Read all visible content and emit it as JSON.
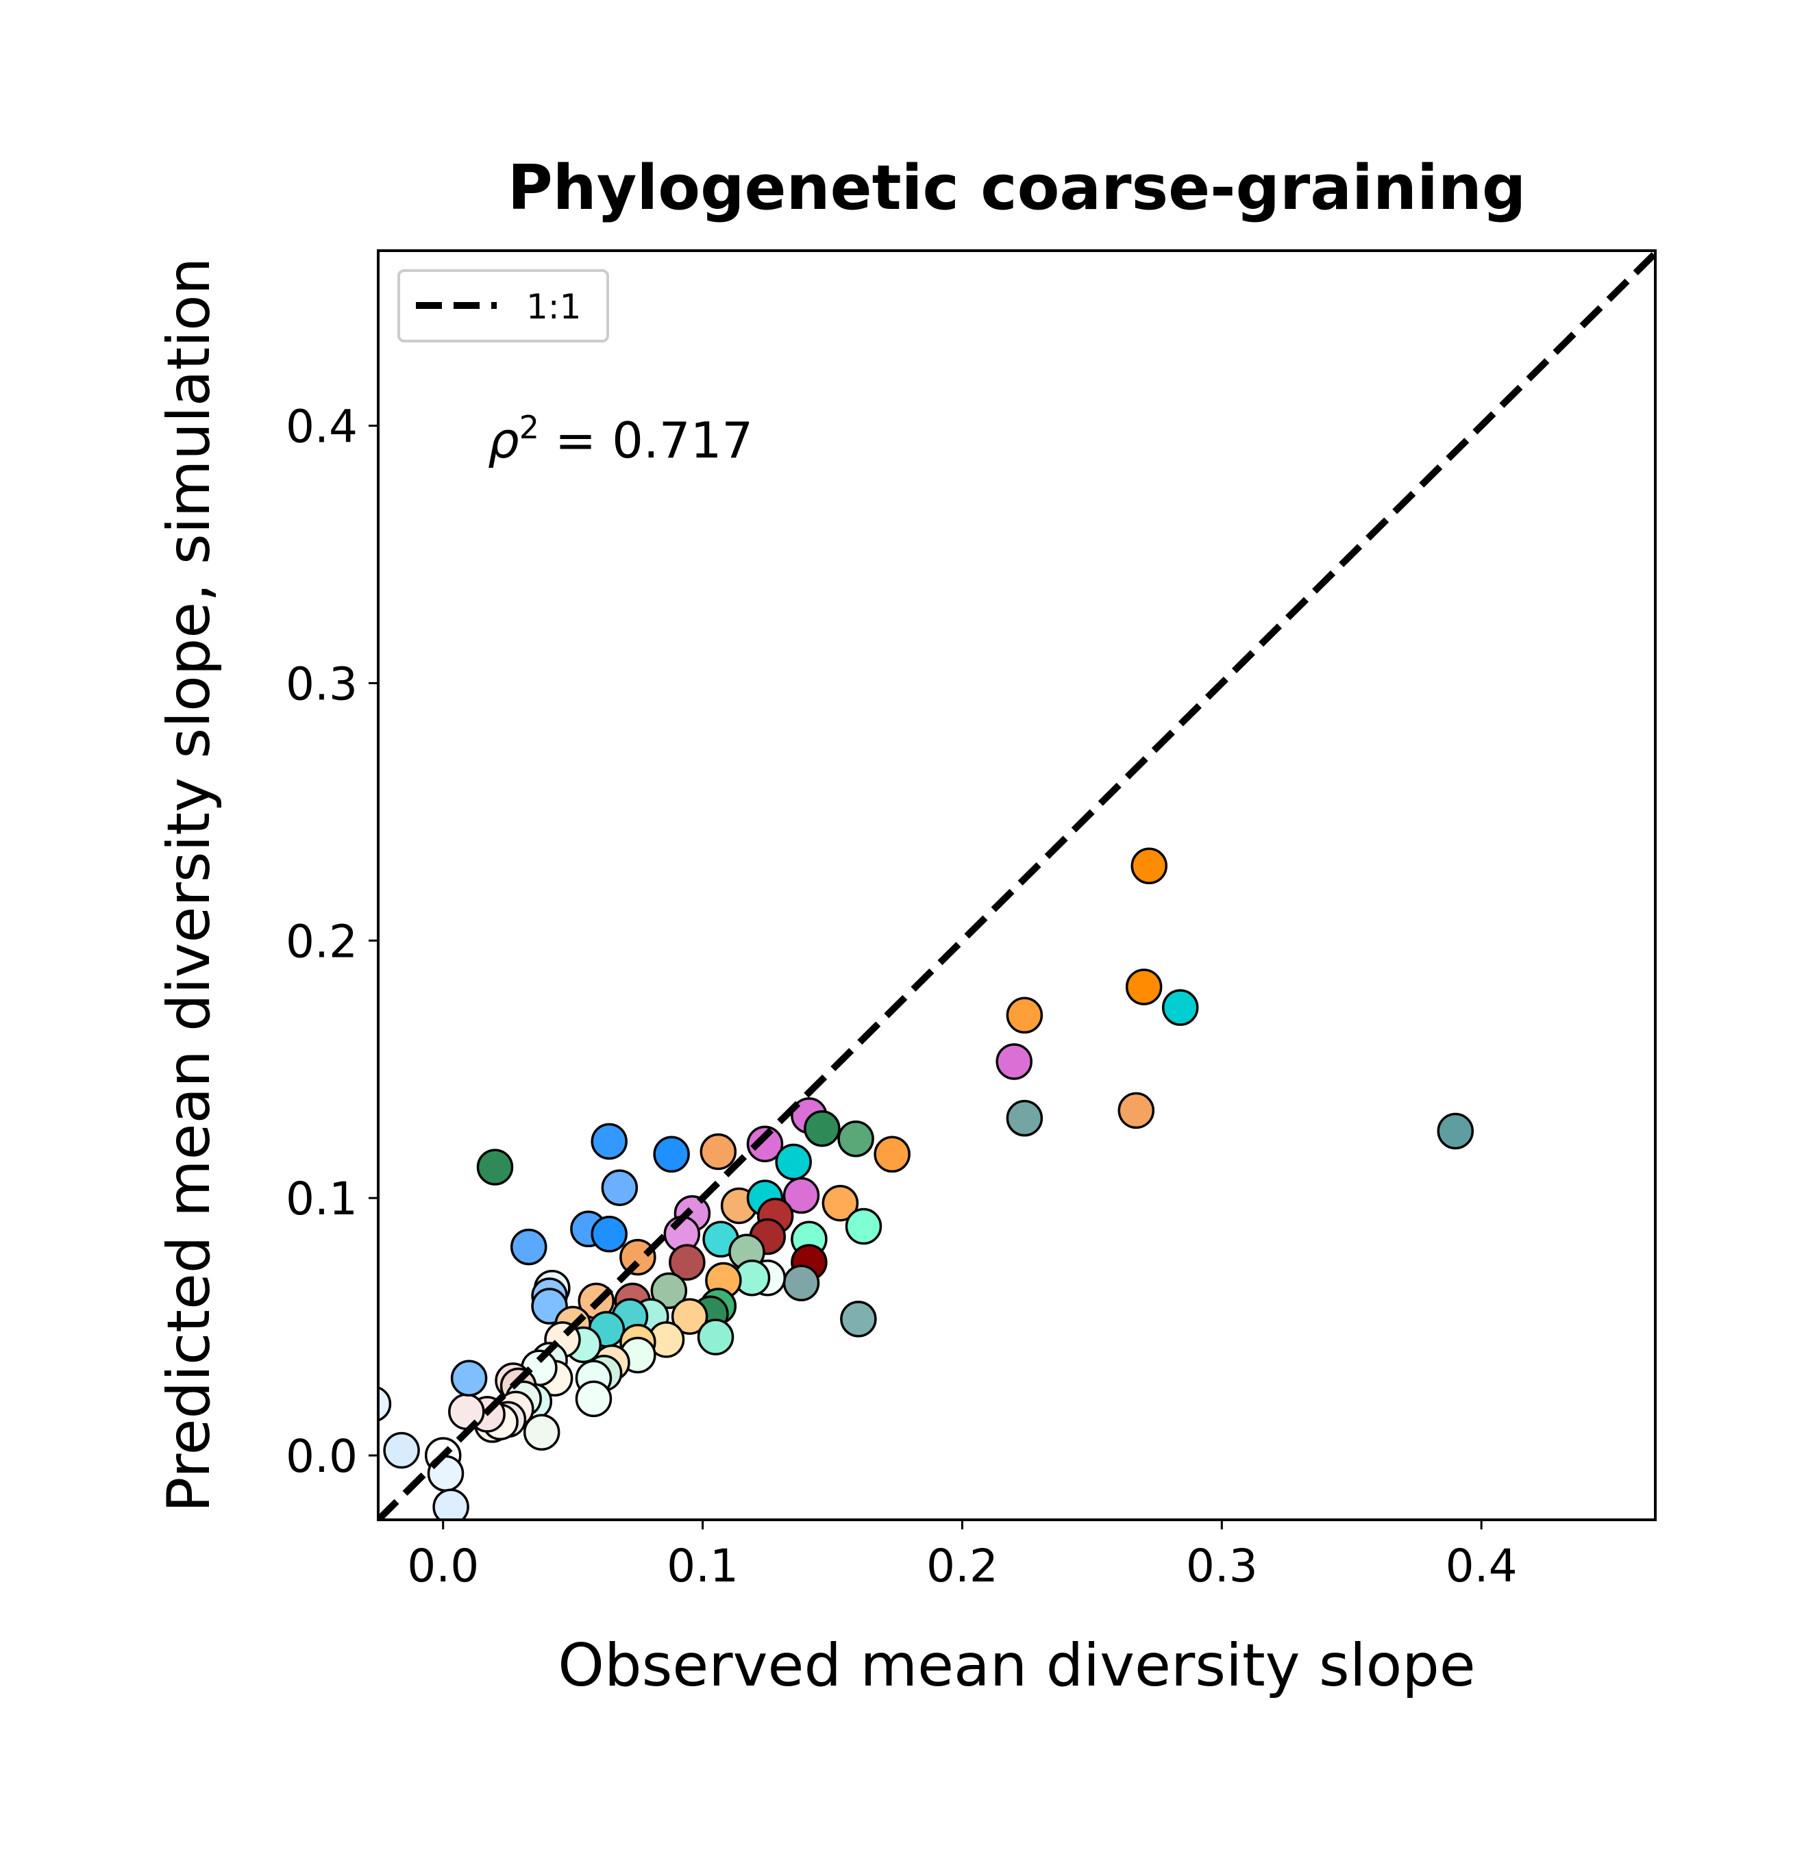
{
  "chart_data": {
    "type": "scatter",
    "title": "Phylogenetic coarse-graining",
    "xlabel": "Observed mean diversity slope",
    "ylabel": "Predicted mean diversity slope, simulation",
    "xlim": [
      -0.025,
      0.467
    ],
    "ylim": [
      -0.025,
      0.468
    ],
    "xticks": [
      0.0,
      0.1,
      0.2,
      0.3,
      0.4
    ],
    "yticks": [
      0.0,
      0.1,
      0.2,
      0.3,
      0.4
    ],
    "xtick_labels": [
      "0.0",
      "0.1",
      "0.2",
      "0.3",
      "0.4"
    ],
    "ytick_labels": [
      "0.0",
      "0.1",
      "0.2",
      "0.3",
      "0.4"
    ],
    "grid": false,
    "legend": {
      "location": "upper-left",
      "entries": [
        {
          "label": "1:1",
          "style": "dashed",
          "color": "#000000"
        }
      ]
    },
    "annotation": {
      "symbol": "ρ",
      "superscript": "2",
      "text": " = 0.717"
    },
    "reference_line": {
      "label": "1:1",
      "slope": 1,
      "intercept": 0
    },
    "points": [
      {
        "x": 0.272,
        "y": 0.229,
        "color": "#ff8c00"
      },
      {
        "x": 0.27,
        "y": 0.182,
        "color": "#ff8c00"
      },
      {
        "x": 0.284,
        "y": 0.174,
        "color": "#00ced1"
      },
      {
        "x": 0.224,
        "y": 0.171,
        "color": "#ff9f3a"
      },
      {
        "x": 0.22,
        "y": 0.153,
        "color": "#da70d6"
      },
      {
        "x": 0.224,
        "y": 0.131,
        "color": "#74a5a5"
      },
      {
        "x": 0.267,
        "y": 0.134,
        "color": "#f4a460"
      },
      {
        "x": 0.39,
        "y": 0.126,
        "color": "#5f9ea0"
      },
      {
        "x": 0.02,
        "y": 0.112,
        "color": "#2e8b57"
      },
      {
        "x": 0.064,
        "y": 0.122,
        "color": "#3399ff"
      },
      {
        "x": 0.088,
        "y": 0.117,
        "color": "#1e90ff"
      },
      {
        "x": 0.106,
        "y": 0.118,
        "color": "#f4a460"
      },
      {
        "x": 0.124,
        "y": 0.121,
        "color": "#da70d6"
      },
      {
        "x": 0.141,
        "y": 0.132,
        "color": "#da70d6"
      },
      {
        "x": 0.146,
        "y": 0.127,
        "color": "#2e8b57"
      },
      {
        "x": 0.159,
        "y": 0.123,
        "color": "#5aa878"
      },
      {
        "x": 0.173,
        "y": 0.117,
        "color": "#ffa040"
      },
      {
        "x": 0.135,
        "y": 0.114,
        "color": "#00ced1"
      },
      {
        "x": 0.068,
        "y": 0.104,
        "color": "#6ab0ff"
      },
      {
        "x": 0.033,
        "y": 0.081,
        "color": "#5ba8ff"
      },
      {
        "x": 0.056,
        "y": 0.088,
        "color": "#4aa0ff"
      },
      {
        "x": 0.064,
        "y": 0.086,
        "color": "#1e90ff"
      },
      {
        "x": 0.096,
        "y": 0.094,
        "color": "#e08ee0"
      },
      {
        "x": 0.092,
        "y": 0.086,
        "color": "#e394e3"
      },
      {
        "x": 0.114,
        "y": 0.097,
        "color": "#f6b070"
      },
      {
        "x": 0.124,
        "y": 0.1,
        "color": "#00ced1"
      },
      {
        "x": 0.138,
        "y": 0.101,
        "color": "#da70d6"
      },
      {
        "x": 0.153,
        "y": 0.098,
        "color": "#ffaa55"
      },
      {
        "x": 0.162,
        "y": 0.089,
        "color": "#7fffd4"
      },
      {
        "x": 0.141,
        "y": 0.084,
        "color": "#7fffd4"
      },
      {
        "x": 0.128,
        "y": 0.093,
        "color": "#b03030"
      },
      {
        "x": 0.125,
        "y": 0.085,
        "color": "#a52a2a"
      },
      {
        "x": 0.107,
        "y": 0.084,
        "color": "#40d8d8"
      },
      {
        "x": 0.117,
        "y": 0.079,
        "color": "#9dc8a8"
      },
      {
        "x": 0.094,
        "y": 0.075,
        "color": "#b05050"
      },
      {
        "x": 0.075,
        "y": 0.077,
        "color": "#f4a460"
      },
      {
        "x": 0.141,
        "y": 0.075,
        "color": "#8b0000"
      },
      {
        "x": 0.138,
        "y": 0.067,
        "color": "#7fa6a6"
      },
      {
        "x": 0.125,
        "y": 0.069,
        "color": "#f0fff8"
      },
      {
        "x": 0.119,
        "y": 0.069,
        "color": "#98f5d8"
      },
      {
        "x": 0.108,
        "y": 0.068,
        "color": "#ffb45a"
      },
      {
        "x": 0.087,
        "y": 0.064,
        "color": "#9cc4a4"
      },
      {
        "x": 0.059,
        "y": 0.06,
        "color": "#f7bd84"
      },
      {
        "x": 0.073,
        "y": 0.06,
        "color": "#c06060"
      },
      {
        "x": 0.042,
        "y": 0.065,
        "color": "#e8f4ff"
      },
      {
        "x": 0.041,
        "y": 0.062,
        "color": "#8fc4ff"
      },
      {
        "x": 0.041,
        "y": 0.058,
        "color": "#7fbfff"
      },
      {
        "x": 0.106,
        "y": 0.058,
        "color": "#3cb371"
      },
      {
        "x": 0.103,
        "y": 0.055,
        "color": "#2e8b57"
      },
      {
        "x": 0.095,
        "y": 0.054,
        "color": "#ffd090"
      },
      {
        "x": 0.08,
        "y": 0.054,
        "color": "#a8f0e0"
      },
      {
        "x": 0.072,
        "y": 0.054,
        "color": "#50d0d0"
      },
      {
        "x": 0.063,
        "y": 0.049,
        "color": "#48d0d0"
      },
      {
        "x": 0.05,
        "y": 0.051,
        "color": "#f8c890"
      },
      {
        "x": 0.16,
        "y": 0.053,
        "color": "#7fafaf"
      },
      {
        "x": 0.105,
        "y": 0.046,
        "color": "#90f0d4"
      },
      {
        "x": 0.086,
        "y": 0.045,
        "color": "#ffe6b0"
      },
      {
        "x": 0.075,
        "y": 0.044,
        "color": "#ffd58a"
      },
      {
        "x": 0.075,
        "y": 0.039,
        "color": "#e8fff0"
      },
      {
        "x": 0.065,
        "y": 0.036,
        "color": "#ffe4c0"
      },
      {
        "x": 0.062,
        "y": 0.032,
        "color": "#d0f0e0"
      },
      {
        "x": 0.058,
        "y": 0.03,
        "color": "#e8fff8"
      },
      {
        "x": 0.054,
        "y": 0.043,
        "color": "#b8f8e8"
      },
      {
        "x": 0.046,
        "y": 0.045,
        "color": "#fff0e0"
      },
      {
        "x": 0.041,
        "y": 0.037,
        "color": "#e0f8f0"
      },
      {
        "x": 0.043,
        "y": 0.03,
        "color": "#fff8e8"
      },
      {
        "x": 0.037,
        "y": 0.034,
        "color": "#f0fff8"
      },
      {
        "x": 0.035,
        "y": 0.021,
        "color": "#d8f8f0"
      },
      {
        "x": 0.038,
        "y": 0.009,
        "color": "#f0f8f0"
      },
      {
        "x": 0.058,
        "y": 0.022,
        "color": "#f0fff8"
      },
      {
        "x": 0.027,
        "y": 0.029,
        "color": "#f8e0e0"
      },
      {
        "x": 0.029,
        "y": 0.027,
        "color": "#f0d8d0"
      },
      {
        "x": 0.031,
        "y": 0.022,
        "color": "#e8f8f0"
      },
      {
        "x": 0.028,
        "y": 0.018,
        "color": "#fff0e8"
      },
      {
        "x": 0.025,
        "y": 0.014,
        "color": "#f0e8e8"
      },
      {
        "x": 0.019,
        "y": 0.012,
        "color": "#fff4e4"
      },
      {
        "x": 0.022,
        "y": 0.013,
        "color": "#fff8f0"
      },
      {
        "x": 0.017,
        "y": 0.016,
        "color": "#f8e4e4"
      },
      {
        "x": 0.009,
        "y": 0.017,
        "color": "#f8e8e8"
      },
      {
        "x": 0.01,
        "y": 0.03,
        "color": "#7fbfff"
      },
      {
        "x": -0.016,
        "y": 0.002,
        "color": "#d8ecff"
      },
      {
        "x": 0.0,
        "y": 0.0,
        "color": "#ffffff"
      },
      {
        "x": 0.001,
        "y": -0.007,
        "color": "#e8f4ff"
      },
      {
        "x": 0.003,
        "y": -0.02,
        "color": "#dceeff"
      },
      {
        "x": -0.027,
        "y": 0.02,
        "color": "#e6f2ff"
      }
    ]
  }
}
